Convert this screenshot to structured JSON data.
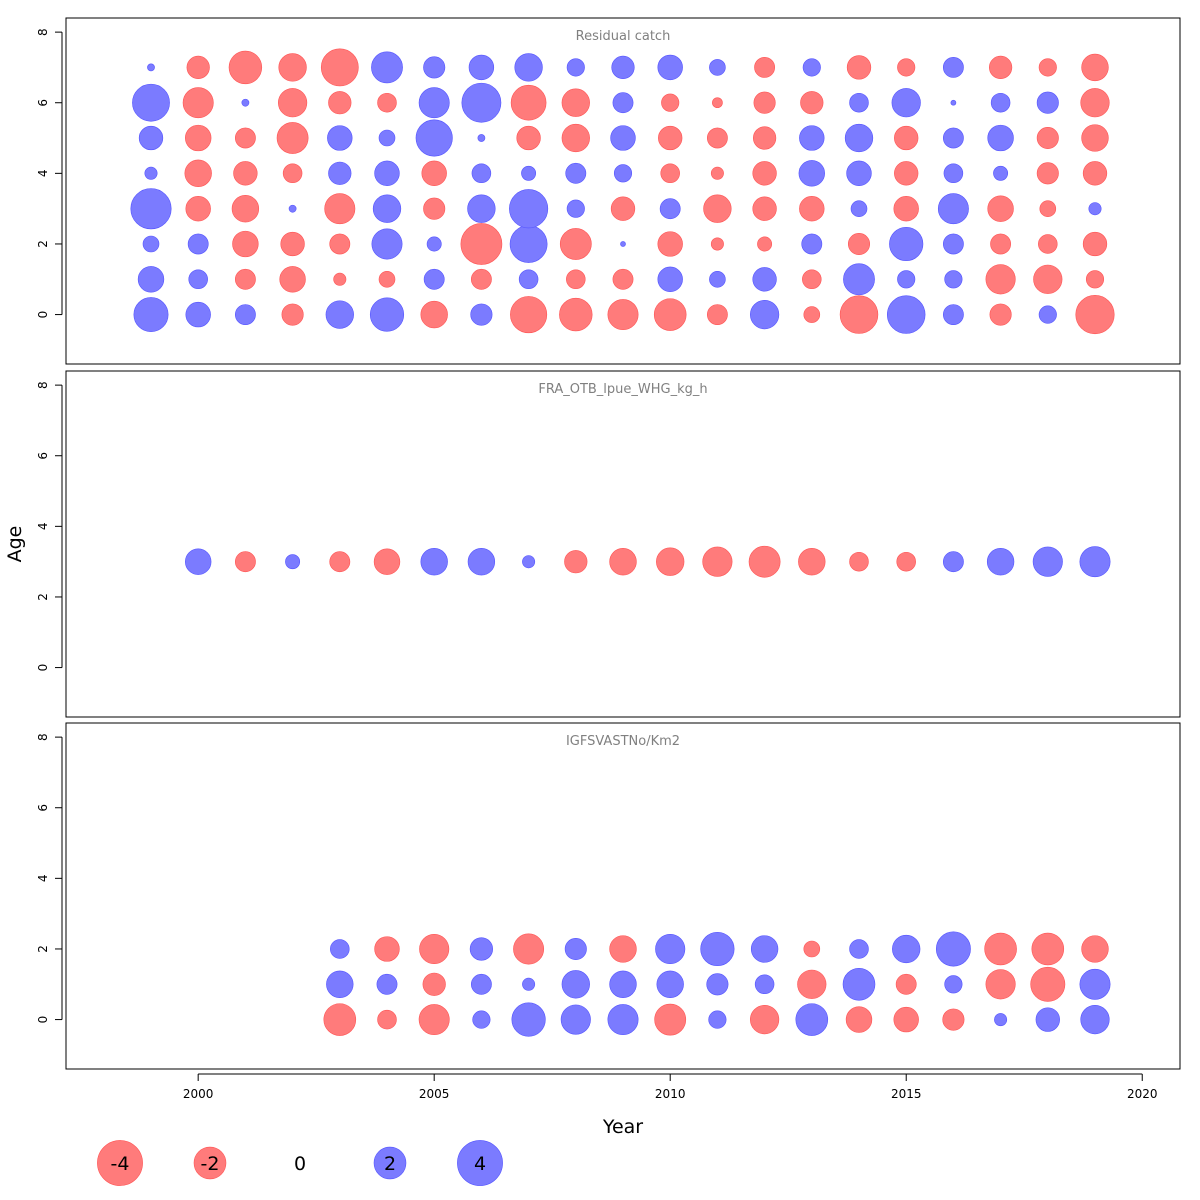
{
  "chart_data": {
    "type": "scatter",
    "subtype": "bubble-residual-plot",
    "xlabel": "Year",
    "ylabel": "Age",
    "xlim": [
      1997.2,
      2020.8
    ],
    "xticks": [
      2000,
      2005,
      2010,
      2015,
      2020
    ],
    "ylim": [
      -1.4,
      8.4
    ],
    "yticks": [
      0,
      2,
      4,
      6,
      8
    ],
    "grid": false,
    "colors": {
      "negative": "#ff7b7b",
      "positive": "#7b7bff",
      "negative_edge": "#ff5555",
      "positive_edge": "#5555ff"
    },
    "years": [
      1999,
      2000,
      2001,
      2002,
      2003,
      2004,
      2005,
      2006,
      2007,
      2008,
      2009,
      2010,
      2011,
      2012,
      2013,
      2014,
      2015,
      2016,
      2017,
      2018,
      2019
    ],
    "panels": [
      {
        "title": "Residual catch",
        "ages": [
          0,
          1,
          2,
          3,
          4,
          5,
          6,
          7
        ],
        "start_year": 1999,
        "residuals": [
          [
            2.3,
            1.2,
            0.8,
            -0.9,
            1.5,
            2.2,
            -1.4,
            0.9,
            -2.6,
            -2.1,
            -1.8,
            -2,
            -0.8,
            1.6,
            -0.5,
            -2.8,
            2.8,
            0.8,
            -0.9,
            0.6,
            -2.9
          ],
          [
            1.3,
            0.7,
            -0.8,
            -1.3,
            -0.3,
            -0.5,
            0.8,
            -0.8,
            0.7,
            -0.7,
            -0.8,
            1.2,
            0.5,
            1.1,
            -0.7,
            1.9,
            0.6,
            0.6,
            -1.7,
            -1.6,
            -0.6
          ],
          [
            0.5,
            0.8,
            -1.3,
            -1.1,
            -0.8,
            1.8,
            0.4,
            -3.3,
            2.7,
            -1.9,
            0.05,
            -1.2,
            -0.3,
            -0.4,
            0.8,
            -0.9,
            2.2,
            0.8,
            -0.8,
            -0.7,
            -1.1
          ],
          [
            3.2,
            -1.2,
            -1.4,
            0.1,
            -1.8,
            1.5,
            -0.9,
            1.5,
            2.9,
            0.6,
            -1.1,
            0.8,
            -1.5,
            -1.1,
            -1.2,
            0.5,
            -1.2,
            1.8,
            -1.3,
            -0.5,
            0.3
          ],
          [
            0.3,
            -1.4,
            -1.1,
            -0.7,
            1.0,
            1.2,
            -1.2,
            0.7,
            0.4,
            0.8,
            0.6,
            -0.7,
            -0.3,
            -1.1,
            1.3,
            1.2,
            -1.1,
            0.7,
            0.4,
            -0.9,
            -1.1
          ],
          [
            1.1,
            -1.3,
            -0.8,
            -1.9,
            1.2,
            0.5,
            2.6,
            0.1,
            -1.1,
            -1.5,
            1.2,
            -1.1,
            -0.8,
            -1.0,
            1.2,
            1.5,
            -1.1,
            0.8,
            1.3,
            -0.9,
            -1.4
          ],
          [
            2.7,
            -1.8,
            0.1,
            -1.6,
            -1.0,
            -0.7,
            1.8,
            3.0,
            -2.4,
            -1.5,
            0.8,
            -0.6,
            -0.2,
            -0.9,
            -1.0,
            0.7,
            1.6,
            0.05,
            0.7,
            0.9,
            -1.6
          ],
          [
            0.1,
            -1.0,
            -2.1,
            -1.5,
            -2.7,
            1.9,
            0.9,
            1.2,
            1.5,
            0.6,
            1.0,
            1.2,
            0.5,
            -0.8,
            0.6,
            -1.1,
            -0.6,
            0.8,
            -1.0,
            -0.6,
            -1.4
          ]
        ]
      },
      {
        "title": "FRA_OTB_lpue_WHG_kg_h",
        "ages": [
          3
        ],
        "start_year": 2000,
        "residuals": [
          [
            1.3,
            -0.8,
            0.4,
            -0.8,
            -1.3,
            1.4,
            1.4,
            0.3,
            -1.0,
            -1.4,
            -1.5,
            -1.7,
            -1.9,
            -1.4,
            -0.7,
            -0.7,
            0.8,
            1.4,
            1.7,
            1.8
          ]
        ]
      },
      {
        "title": "IGFSVASTNo/Km2",
        "ages": [
          0,
          1,
          2
        ],
        "start_year": 2003,
        "residuals": [
          [
            -2.0,
            -0.7,
            -1.8,
            0.6,
            2.2,
            1.7,
            1.8,
            -1.9,
            0.6,
            -1.6,
            2.0,
            -1.3,
            -1.2,
            -0.9,
            0.3,
            1.1,
            1.6
          ],
          [
            1.4,
            0.8,
            -1.0,
            0.8,
            0.3,
            1.5,
            1.4,
            1.4,
            0.9,
            0.7,
            -1.6,
            2.0,
            -0.8,
            0.6,
            -1.7,
            -2.3,
            1.8
          ],
          [
            0.7,
            -1.2,
            -1.7,
            1.0,
            -1.8,
            0.9,
            -1.4,
            1.7,
            2.2,
            1.4,
            -0.5,
            0.7,
            1.5,
            2.3,
            -2.0,
            -2.0,
            -1.4
          ]
        ]
      }
    ],
    "legend": {
      "position": "bottom-left",
      "entries": [
        {
          "label": "-4",
          "value": -4
        },
        {
          "label": "-2",
          "value": -2
        },
        {
          "label": "0",
          "value": 0
        },
        {
          "label": "2",
          "value": 2
        },
        {
          "label": "4",
          "value": 4
        }
      ]
    }
  }
}
